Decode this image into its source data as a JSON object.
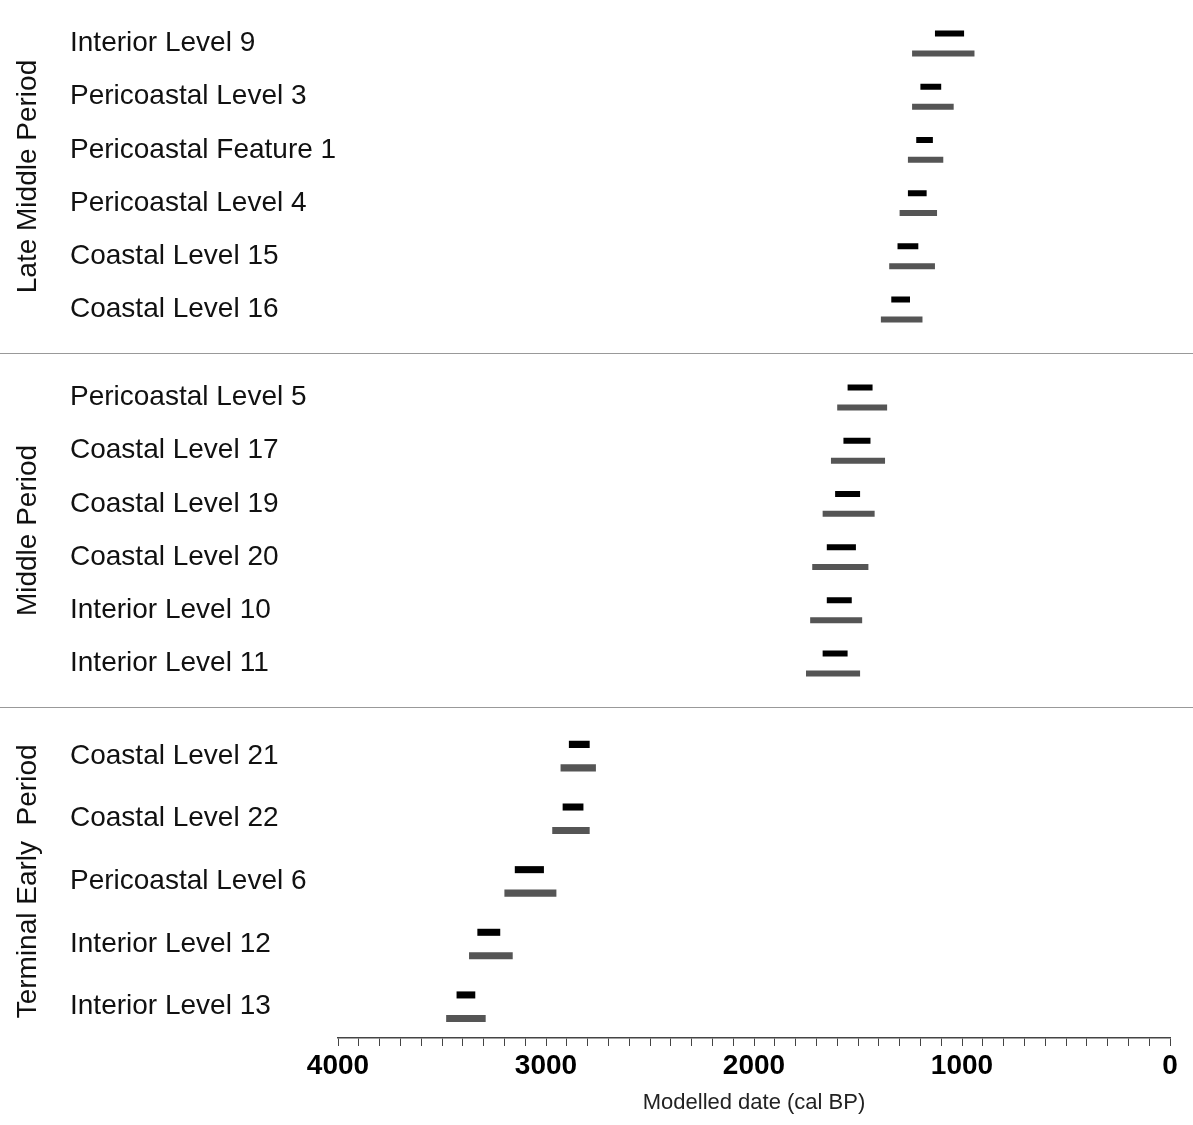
{
  "chart_data": [
    {
      "type": "bar",
      "orientation": "horizontal",
      "ylabel": "Late Middle Period",
      "tick_labels": "y",
      "grid": false,
      "legend": false,
      "categories": [
        "Interior Level 9",
        "Pericoastal Level 3",
        "Pericoastal Feature 1",
        "Pericoastal Level 4",
        "Coastal Level 15",
        "Coastal Level 16"
      ],
      "xlim": [
        4000,
        0
      ],
      "series": [
        {
          "color": "#000000",
          "base": [
            990,
            1100,
            1140,
            1170,
            1210,
            1250
          ],
          "values": [
            140,
            100,
            80,
            90,
            100,
            90
          ]
        },
        {
          "color": "#555555",
          "base": [
            940,
            1040,
            1090,
            1120,
            1130,
            1190
          ],
          "values": [
            300,
            200,
            170,
            180,
            220,
            200
          ]
        }
      ]
    },
    {
      "type": "bar",
      "orientation": "horizontal",
      "ylabel": "Middle Period",
      "tick_labels": "y",
      "grid": false,
      "legend": false,
      "categories": [
        "Pericoastal Level 5",
        "Coastal Level 17",
        "Coastal Level 19",
        "Coastal Level 20",
        "Interior Level 10",
        "Interior Level 11"
      ],
      "xlim": [
        4000,
        0
      ],
      "series": [
        {
          "color": "#000000",
          "base": [
            1430,
            1440,
            1490,
            1510,
            1530,
            1550
          ],
          "values": [
            120,
            130,
            120,
            140,
            120,
            120
          ]
        },
        {
          "color": "#555555",
          "base": [
            1360,
            1370,
            1420,
            1450,
            1480,
            1490
          ],
          "values": [
            240,
            260,
            250,
            270,
            250,
            260
          ]
        }
      ]
    },
    {
      "type": "bar",
      "orientation": "horizontal",
      "ylabel": "Terminal Early  Period",
      "xlabel": "Modelled date (cal BP)",
      "grid": false,
      "legend": false,
      "categories": [
        "Coastal Level 21",
        "Coastal Level 22",
        "Pericoastal Level 6",
        "Interior Level 12",
        "Interior Level 13"
      ],
      "xlim": [
        4000,
        0
      ],
      "xticks": [
        4000,
        {
          "value": 3900,
          "label": null
        },
        {
          "value": 3800,
          "label": null
        },
        {
          "value": 3700,
          "label": null
        },
        {
          "value": 3600,
          "label": null
        },
        {
          "value": 3500,
          "label": null
        },
        {
          "value": 3400,
          "label": null
        },
        {
          "value": 3300,
          "label": null
        },
        {
          "value": 3200,
          "label": null
        },
        {
          "value": 3100,
          "label": null
        },
        3000,
        {
          "value": 2900,
          "label": null
        },
        {
          "value": 2800,
          "label": null
        },
        {
          "value": 2700,
          "label": null
        },
        {
          "value": 2600,
          "label": null
        },
        {
          "value": 2500,
          "label": null
        },
        {
          "value": 2400,
          "label": null
        },
        {
          "value": 2300,
          "label": null
        },
        {
          "value": 2200,
          "label": null
        },
        {
          "value": 2100,
          "label": null
        },
        2000,
        {
          "value": 1900,
          "label": null
        },
        {
          "value": 1800,
          "label": null
        },
        {
          "value": 1700,
          "label": null
        },
        {
          "value": 1600,
          "label": null
        },
        {
          "value": 1500,
          "label": null
        },
        {
          "value": 1400,
          "label": null
        },
        {
          "value": 1300,
          "label": null
        },
        {
          "value": 1200,
          "label": null
        },
        {
          "value": 1100,
          "label": null
        },
        1000,
        {
          "value": 900,
          "label": null
        },
        {
          "value": 800,
          "label": null
        },
        {
          "value": 700,
          "label": null
        },
        {
          "value": 600,
          "label": null
        },
        {
          "value": 500,
          "label": null
        },
        {
          "value": 400,
          "label": null
        },
        {
          "value": 300,
          "label": null
        },
        {
          "value": 200,
          "label": null
        },
        {
          "value": 100,
          "label": null
        },
        0
      ],
      "series": [
        {
          "color": "#000000",
          "base": [
            2790,
            2820,
            3010,
            3220,
            3340
          ],
          "values": [
            100,
            100,
            140,
            110,
            90
          ]
        },
        {
          "color": "#555555",
          "base": [
            2760,
            2790,
            2950,
            3160,
            3290
          ],
          "values": [
            170,
            180,
            250,
            210,
            190
          ]
        }
      ]
    }
  ]
}
